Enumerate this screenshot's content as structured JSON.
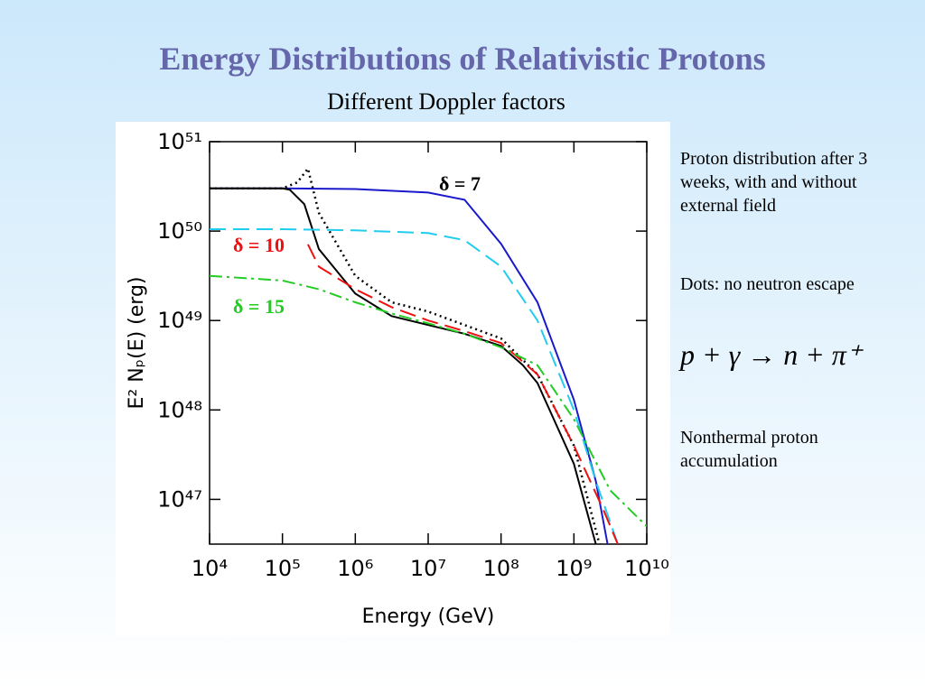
{
  "title": "Energy Distributions of Relativistic Protons",
  "subtitle": "Different Doppler factors",
  "notes": [
    "Proton distribution after 3 weeks, with and without external field",
    "Dots: no neutron escape",
    "p + γ → n + π⁺",
    "Nonthermal proton accumulation"
  ],
  "chart_data": {
    "type": "line",
    "x_label": "Energy   (GeV)",
    "y_label": "E² Nₚ(E)   (erg)",
    "xscale": "log",
    "yscale": "log",
    "xlim": [
      10000,
      10000000000
    ],
    "ylim": [
      3.16e+46,
      1e+51
    ],
    "xticks": [
      {
        "value": 10000,
        "label": "10⁴"
      },
      {
        "value": 100000,
        "label": "10⁵"
      },
      {
        "value": 1000000,
        "label": "10⁶"
      },
      {
        "value": 10000000,
        "label": "10⁷"
      },
      {
        "value": 100000000,
        "label": "10⁸"
      },
      {
        "value": 1000000000,
        "label": "10⁹"
      },
      {
        "value": 10000000000,
        "label": "10¹⁰"
      }
    ],
    "yticks": [
      {
        "value": 1e+47,
        "label": "10⁴⁷"
      },
      {
        "value": 1e+48,
        "label": "10⁴⁸"
      },
      {
        "value": 1e+49,
        "label": "10⁴⁹"
      },
      {
        "value": 1e+50,
        "label": "10⁵⁰"
      },
      {
        "value": 1e+51,
        "label": "10⁵¹"
      }
    ],
    "series": [
      {
        "name": "δ = 7",
        "color": "#1a1acc",
        "label_color": "#000000",
        "dash": "solid",
        "x": [
          10000,
          100000,
          1000000,
          10000000,
          31600000,
          100000000,
          316000000,
          1000000000,
          2000000000,
          2900000000
        ],
        "values": [
          3e+50,
          3e+50,
          2.95e+50,
          2.7e+50,
          2.24e+50,
          7.2e+49,
          1.6e+49,
          1.3e+48,
          1.6e+47,
          3.16e+46
        ]
      },
      {
        "color": "#000000",
        "dash": "solid",
        "x": [
          10000,
          100000,
          126000,
          200000,
          316000,
          1000000,
          3160000,
          10000000,
          31600000,
          100000000,
          200000000,
          316000000,
          1000000000,
          2000000000
        ],
        "values": [
          3e+50,
          3e+50,
          2.9e+50,
          2e+50,
          6.3e+49,
          2e+49,
          1.12e+49,
          8.9e+48,
          7.1e+48,
          5.2e+48,
          3.16e+48,
          2e+48,
          2.5e+47,
          3.16e+46
        ]
      },
      {
        "color": "#000000",
        "dash": "dotted",
        "x": [
          10000,
          100000,
          160000,
          224000,
          316000,
          1000000,
          3160000,
          10000000,
          31600000,
          100000000,
          316000000,
          1000000000,
          2240000000
        ],
        "values": [
          3e+50,
          3e+50,
          3.5e+50,
          5e+50,
          1.6e+50,
          3.16e+49,
          1.6e+49,
          1.26e+49,
          8.9e+48,
          6.3e+48,
          2.5e+48,
          4e+47,
          3.16e+46
        ]
      },
      {
        "color": "#22ccee",
        "dash": "dashed",
        "x": [
          10000,
          100000,
          1000000,
          10000000,
          31600000,
          100000000,
          316000000,
          1000000000,
          2000000000,
          4000000000
        ],
        "values": [
          1.05e+50,
          1.05e+50,
          1.02e+50,
          9.5e+49,
          7.9e+49,
          4e+49,
          1e+49,
          1e+48,
          1.6e+47,
          3.16e+46
        ]
      },
      {
        "name": "δ = 10",
        "color": "#ee1111",
        "label_color": "#ee1111",
        "dash": "dashed",
        "x": [
          224000,
          316000,
          1000000,
          3160000,
          10000000,
          31600000,
          100000000,
          316000000,
          1000000000,
          2500000000,
          4000000000
        ],
        "values": [
          7.1e+49,
          4e+49,
          2.24e+49,
          1.41e+49,
          1e+49,
          7.6e+48,
          5.6e+48,
          2.5e+48,
          4e+47,
          7.9e+46,
          3.16e+46
        ]
      },
      {
        "name": "δ = 15",
        "color": "#22cc22",
        "label_color": "#22cc22",
        "dash": "dashdot",
        "x": [
          10000,
          100000,
          316000,
          1000000,
          3160000,
          10000000,
          31600000,
          100000000,
          316000000,
          1000000000,
          3160000000,
          10000000000
        ],
        "values": [
          3.16e+49,
          2.8e+49,
          2.24e+49,
          1.6e+49,
          1.2e+49,
          9.3e+48,
          7.1e+48,
          5e+48,
          3.16e+48,
          7.9e+47,
          1.26e+47,
          5e+46
        ]
      }
    ]
  }
}
